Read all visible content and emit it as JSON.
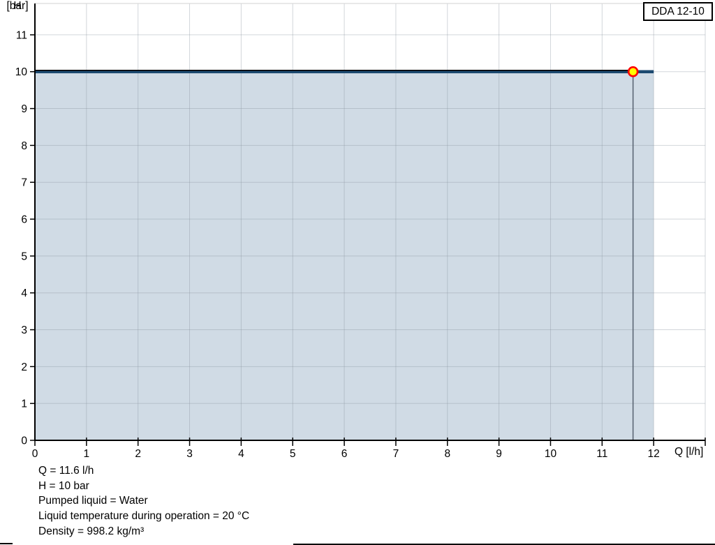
{
  "badge": {
    "label": "DDA 12-10"
  },
  "axis_titles": {
    "y_line1": "H",
    "y_line2": "[bar]",
    "x": "Q [l/h]"
  },
  "caption": {
    "lines": [
      "Q = 11.6 l/h",
      "H = 10 bar",
      "Pumped liquid = Water",
      "Liquid temperature during operation = 20 °C",
      "Density = 998.2 kg/m³"
    ]
  },
  "chart_data": {
    "type": "area",
    "title": "DDA 12-10",
    "xlabel": "Q [l/h]",
    "ylabel": "H [bar]",
    "xlim": [
      0,
      13
    ],
    "ylim": [
      0,
      11.85
    ],
    "x_ticks": [
      0,
      1,
      2,
      3,
      4,
      5,
      6,
      7,
      8,
      9,
      10,
      11,
      12
    ],
    "y_ticks": [
      0,
      1,
      2,
      3,
      4,
      5,
      6,
      7,
      8,
      9,
      10,
      11
    ],
    "grid": true,
    "legend_position": "none",
    "series": [
      {
        "name": "pump-curve",
        "color": "#1c4a70",
        "width": 4.5,
        "points": [
          [
            0,
            10
          ],
          [
            12,
            10
          ]
        ],
        "fill_to_zero": true,
        "fill_color": "#d0dbe5"
      },
      {
        "name": "operating-line",
        "color": "#000000",
        "width": 1.6,
        "points": [
          [
            0,
            10
          ],
          [
            11.6,
            10
          ]
        ]
      }
    ],
    "drop_line": {
      "x": 11.6,
      "y_top": 10,
      "y_bottom": 0,
      "color": "#55606e",
      "width": 1.5
    },
    "operating_point": {
      "x": 11.6,
      "y": 10,
      "fill": "#ffff00",
      "stroke": "#ff0000",
      "radius": 6.5,
      "stroke_width": 2.6
    },
    "colors": {
      "area_fill": "#d0dbe5",
      "grid": "#8a949e",
      "axis": "#000000",
      "plot_border": "#d9d9d9",
      "marker_fill": "#ffff00",
      "marker_stroke": "#ff0000"
    }
  }
}
